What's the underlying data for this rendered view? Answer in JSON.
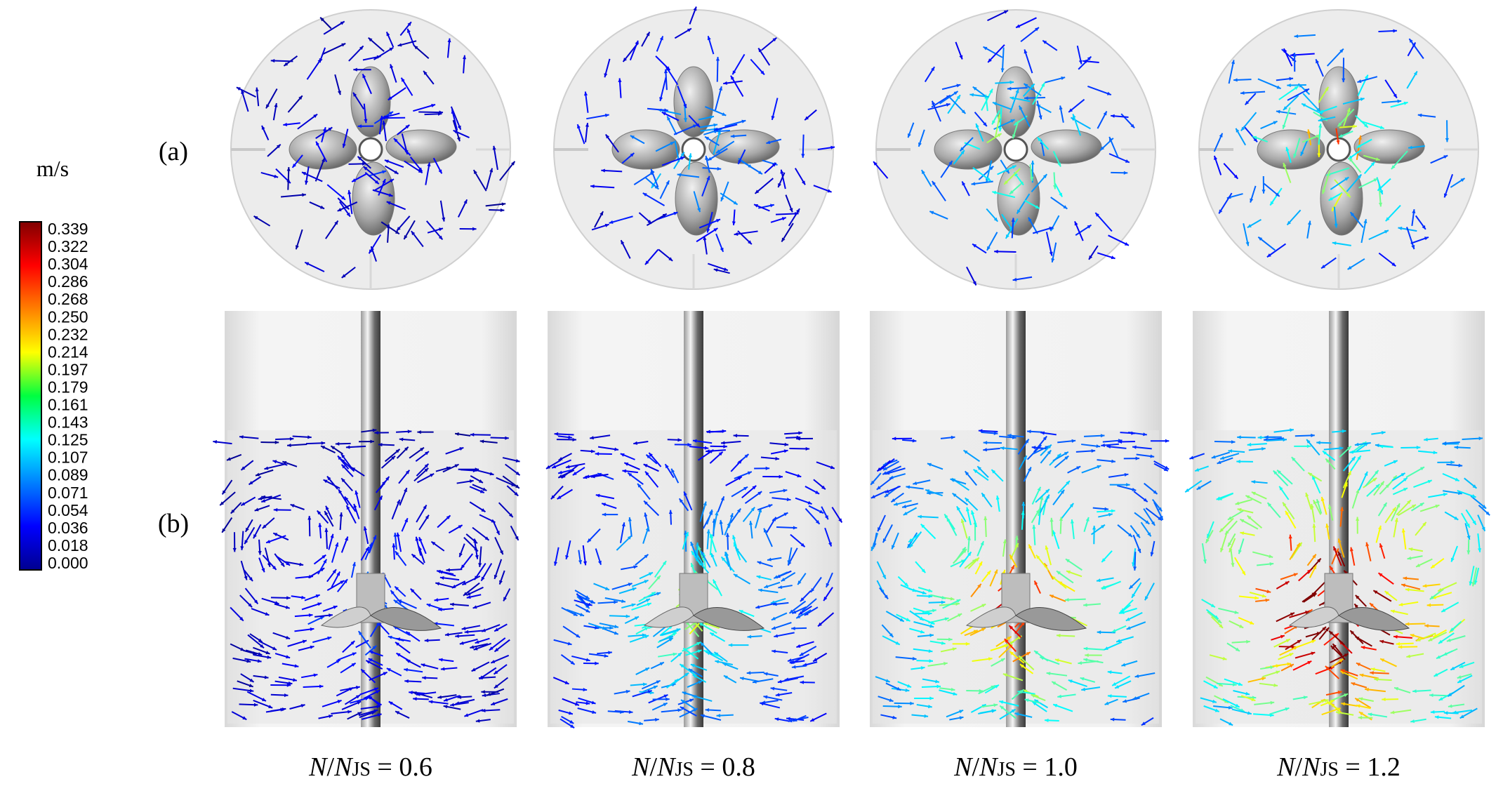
{
  "colorbar": {
    "unit": "m/s",
    "labels": [
      "0.339",
      "0.322",
      "0.304",
      "0.286",
      "0.268",
      "0.250",
      "0.232",
      "0.214",
      "0.197",
      "0.179",
      "0.161",
      "0.143",
      "0.125",
      "0.107",
      "0.089",
      "0.071",
      "0.054",
      "0.036",
      "0.018",
      "0.000"
    ]
  },
  "row_labels": [
    "(a)",
    "(b)"
  ],
  "captions": [
    {
      "parts": [
        "N",
        "/",
        "N",
        "JS",
        " = 0.6"
      ]
    },
    {
      "parts": [
        "N",
        "/",
        "N",
        "JS",
        " = 0.8"
      ]
    },
    {
      "parts": [
        "N",
        "/",
        "N",
        "JS",
        " = 1.0"
      ]
    },
    {
      "parts": [
        "N",
        "/",
        "N",
        "JS",
        " = 1.2"
      ]
    }
  ]
}
